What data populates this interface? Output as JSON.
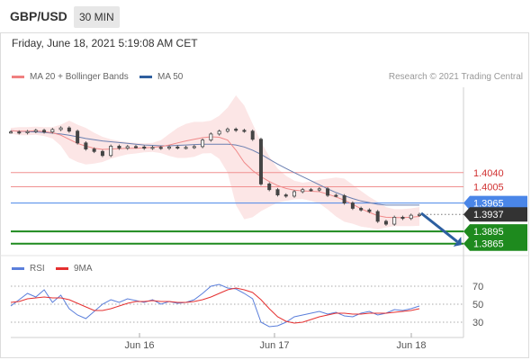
{
  "header": {
    "symbol": "GBP/USD",
    "timeframe": "30 MIN"
  },
  "timestamp": "Friday, June 18, 2021 5:19:08 AM CET",
  "legend_main": [
    {
      "label": "MA 20 + Bollinger Bands",
      "color": "#f08080"
    },
    {
      "label": "MA 50",
      "color": "#2f5f9e"
    }
  ],
  "research": "Research © 2021 Trading Central",
  "legend_rsi": [
    {
      "label": "RSI",
      "color": "#5b7fdb"
    },
    {
      "label": "9MA",
      "color": "#e53030"
    }
  ],
  "chart_data": [
    {
      "type": "line",
      "title": "GBP/USD 30 MIN",
      "ylim": [
        1.384,
        1.425
      ],
      "x_ticks": [
        "Jun 16",
        "Jun 17",
        "Jun 18"
      ],
      "horizontal_levels": [
        {
          "value": 1.404,
          "label": "1.4040",
          "color": "#f09090",
          "label_style": "text"
        },
        {
          "value": 1.4005,
          "label": "1.4005",
          "color": "#f09090",
          "label_style": "text"
        },
        {
          "value": 1.3965,
          "label": "1.3965",
          "color": "#4a86e8",
          "label_style": "badge"
        },
        {
          "value": 1.3937,
          "label": "1.3937",
          "color": "#333333",
          "label_style": "badge"
        },
        {
          "value": 1.3895,
          "label": "1.3895",
          "color": "#1e8a1e",
          "label_style": "badge"
        },
        {
          "value": 1.3865,
          "label": "1.3865",
          "color": "#1e8a1e",
          "label_style": "badge"
        }
      ],
      "series": [
        {
          "name": "Price",
          "values": [
            1.414,
            1.4138,
            1.4141,
            1.4144,
            1.414,
            1.4146,
            1.415,
            1.4142,
            1.4113,
            1.4098,
            1.4092,
            1.4082,
            1.4105,
            1.41,
            1.4104,
            1.4103,
            1.41,
            1.4102,
            1.41,
            1.4103,
            1.4101,
            1.4102,
            1.4104,
            1.412,
            1.4135,
            1.4142,
            1.4147,
            1.4144,
            1.4142,
            1.4122,
            1.4012,
            1.3998,
            1.3985,
            1.3982,
            1.3993,
            1.3998,
            1.3997,
            1.4,
            1.3984,
            1.3983,
            1.3965,
            1.3952,
            1.3948,
            1.3944,
            1.392,
            1.3913,
            1.393,
            1.3927,
            1.3935,
            1.3937
          ]
        },
        {
          "name": "MA 50",
          "values": [
            1.4143,
            1.4142,
            1.4141,
            1.414,
            1.4139,
            1.4137,
            1.4135,
            1.4132,
            1.4128,
            1.4124,
            1.4121,
            1.4118,
            1.4116,
            1.4114,
            1.4112,
            1.411,
            1.4108,
            1.4107,
            1.4106,
            1.4106,
            1.4107,
            1.4108,
            1.4109,
            1.411,
            1.411,
            1.411,
            1.411,
            1.4108,
            1.4103,
            1.4095,
            1.4085,
            1.4073,
            1.4061,
            1.405,
            1.404,
            1.403,
            1.402,
            1.401,
            1.4,
            1.3991,
            1.3983,
            1.3976,
            1.397,
            1.3966,
            1.3962,
            1.396,
            1.396,
            1.396,
            1.396,
            1.396
          ]
        },
        {
          "name": "MA 20",
          "values": [
            1.4143,
            1.4142,
            1.4142,
            1.4143,
            1.4141,
            1.4138,
            1.4132,
            1.4122,
            1.4112,
            1.4105,
            1.41,
            1.4097,
            1.4098,
            1.4099,
            1.41,
            1.41,
            1.4101,
            1.4102,
            1.4104,
            1.4108,
            1.4113,
            1.4118,
            1.4122,
            1.4126,
            1.4128,
            1.4127,
            1.412,
            1.4095,
            1.4065,
            1.4045,
            1.403,
            1.4018,
            1.4008,
            1.4001,
            1.3997,
            1.3995,
            1.3994,
            1.3993,
            1.3987,
            1.398,
            1.3972,
            1.3962,
            1.3951,
            1.3942,
            1.3934,
            1.393,
            1.3929,
            1.3929,
            1.393,
            1.3932
          ]
        },
        {
          "name": "BB Upper",
          "values": [
            1.415,
            1.4152,
            1.4152,
            1.4153,
            1.4152,
            1.4152,
            1.4158,
            1.4168,
            1.4158,
            1.415,
            1.4138,
            1.4128,
            1.4122,
            1.4118,
            1.4115,
            1.4113,
            1.4112,
            1.4113,
            1.412,
            1.4135,
            1.415,
            1.416,
            1.4165,
            1.4165,
            1.4168,
            1.418,
            1.42,
            1.423,
            1.4205,
            1.416,
            1.4115,
            1.408,
            1.405,
            1.4032,
            1.402,
            1.4015,
            1.4018,
            1.4022,
            1.4025,
            1.4028,
            1.4025,
            1.401,
            1.3995,
            1.398,
            1.3968,
            1.3955,
            1.395,
            1.395,
            1.3952,
            1.3955
          ]
        },
        {
          "name": "BB Lower",
          "values": [
            1.4136,
            1.4132,
            1.4132,
            1.4133,
            1.413,
            1.4124,
            1.4106,
            1.4076,
            1.4066,
            1.406,
            1.4062,
            1.4066,
            1.4074,
            1.408,
            1.4085,
            1.4087,
            1.409,
            1.4091,
            1.4088,
            1.4081,
            1.4076,
            1.4076,
            1.4079,
            1.4087,
            1.4088,
            1.4074,
            1.404,
            1.396,
            1.3925,
            1.393,
            1.3945,
            1.3956,
            1.3966,
            1.397,
            1.3974,
            1.3975,
            1.397,
            1.3964,
            1.3949,
            1.3932,
            1.3919,
            1.3914,
            1.3907,
            1.3904,
            1.39,
            1.3905,
            1.3908,
            1.3908,
            1.3908,
            1.3909
          ]
        }
      ],
      "forecast_arrow": {
        "from": 1.394,
        "to": 1.387
      }
    },
    {
      "type": "line",
      "title": "RSI",
      "ylim": [
        20,
        80
      ],
      "y_ticks": [
        70,
        50,
        30
      ],
      "x_ticks": [
        "Jun 16",
        "Jun 17",
        "Jun 18"
      ],
      "series": [
        {
          "name": "RSI",
          "values": [
            48,
            55,
            62,
            58,
            66,
            52,
            60,
            45,
            38,
            34,
            42,
            50,
            55,
            52,
            56,
            54,
            52,
            55,
            50,
            53,
            51,
            52,
            55,
            62,
            70,
            72,
            68,
            67,
            62,
            56,
            30,
            25,
            26,
            30,
            36,
            38,
            40,
            42,
            39,
            41,
            37,
            36,
            40,
            42,
            38,
            40,
            44,
            43,
            45,
            48
          ]
        },
        {
          "name": "9MA",
          "values": [
            52,
            53,
            56,
            57,
            58,
            57,
            57,
            55,
            51,
            47,
            43,
            43,
            45,
            48,
            51,
            53,
            53,
            54,
            53,
            53,
            52,
            52,
            53,
            55,
            58,
            62,
            66,
            68,
            66,
            63,
            55,
            45,
            36,
            31,
            29,
            30,
            33,
            36,
            38,
            40,
            40,
            39,
            39,
            40,
            40,
            40,
            41,
            42,
            43,
            45
          ]
        }
      ]
    }
  ]
}
